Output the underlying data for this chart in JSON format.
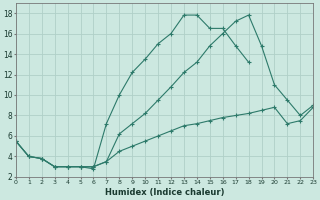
{
  "xlabel": "Humidex (Indice chaleur)",
  "bg_color": "#cce8e0",
  "grid_color": "#b0d0c8",
  "line_color": "#2d7a6a",
  "series": [
    {
      "x": [
        0,
        1,
        2,
        3,
        4,
        5,
        6,
        7,
        8,
        9,
        10,
        11,
        12,
        13,
        14,
        15,
        16,
        17,
        18,
        19,
        20,
        21,
        22,
        23
      ],
      "y": [
        5.5,
        4.0,
        3.8,
        3.0,
        3.0,
        3.0,
        2.8,
        7.2,
        10.0,
        12.2,
        13.5,
        15.0,
        16.0,
        17.8,
        17.8,
        16.5,
        16.5,
        14.8,
        13.2,
        null,
        null,
        null,
        null,
        null
      ]
    },
    {
      "x": [
        0,
        1,
        2,
        3,
        4,
        5,
        6,
        7,
        8,
        9,
        10,
        11,
        12,
        13,
        14,
        15,
        16,
        17,
        18,
        19,
        20,
        21,
        22,
        23
      ],
      "y": [
        5.5,
        4.0,
        3.8,
        3.0,
        3.0,
        3.0,
        3.0,
        3.5,
        6.2,
        7.2,
        8.2,
        9.5,
        10.8,
        12.2,
        13.2,
        14.8,
        16.0,
        17.2,
        17.8,
        14.8,
        11.0,
        9.5,
        8.0,
        9.0
      ]
    },
    {
      "x": [
        0,
        1,
        2,
        3,
        4,
        5,
        6,
        7,
        8,
        9,
        10,
        11,
        12,
        13,
        14,
        15,
        16,
        17,
        18,
        19,
        20,
        21,
        22,
        23
      ],
      "y": [
        5.5,
        4.0,
        3.8,
        3.0,
        3.0,
        3.0,
        3.0,
        3.5,
        4.5,
        5.0,
        5.5,
        6.0,
        6.5,
        7.0,
        7.2,
        7.5,
        7.8,
        8.0,
        8.2,
        8.5,
        8.8,
        7.2,
        7.5,
        8.8
      ]
    }
  ],
  "xlim": [
    0,
    23
  ],
  "ylim": [
    2,
    19
  ],
  "yticks": [
    2,
    4,
    6,
    8,
    10,
    12,
    14,
    16,
    18
  ],
  "xticks": [
    0,
    1,
    2,
    3,
    4,
    5,
    6,
    7,
    8,
    9,
    10,
    11,
    12,
    13,
    14,
    15,
    16,
    17,
    18,
    19,
    20,
    21,
    22,
    23
  ],
  "xtick_labels": [
    "0",
    "1",
    "2",
    "3",
    "4",
    "5",
    "6",
    "7",
    "8",
    "9",
    "10",
    "11",
    "12",
    "13",
    "14",
    "15",
    "16",
    "17",
    "18",
    "19",
    "20",
    "21",
    "22",
    "23"
  ],
  "marker": "+",
  "markersize": 3.5,
  "linewidth": 0.8
}
